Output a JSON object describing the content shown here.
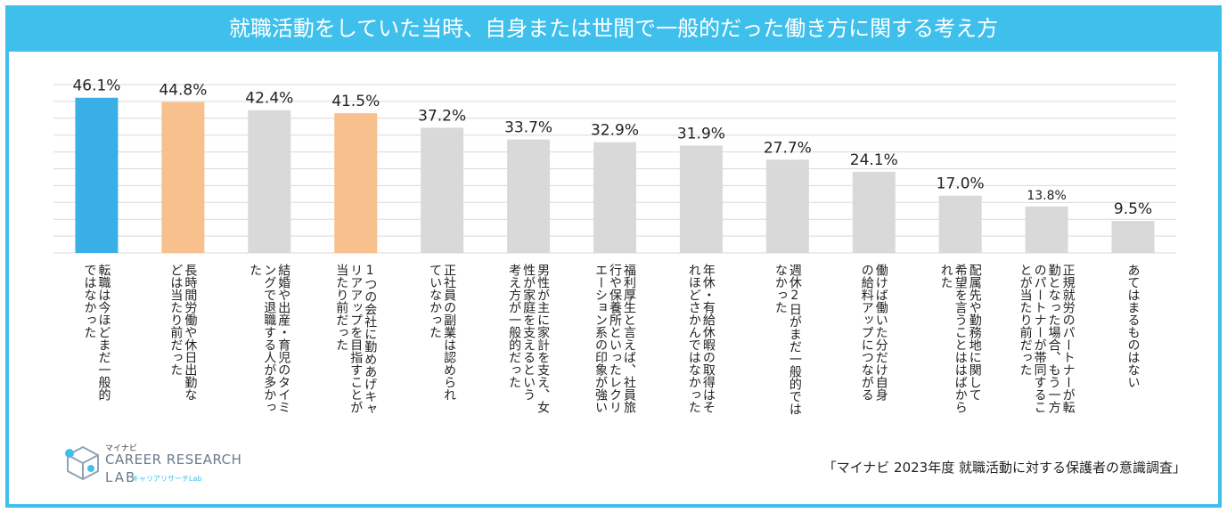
{
  "chart_data": {
    "type": "bar",
    "title": "就職活動をしていた当時、自身または世間で一般的だった働き方に関する考え方",
    "categories": [
      [
        "転職は今ほどまだ一般的",
        "ではなかった"
      ],
      [
        "長時間労働や休日出勤な",
        "どは当たり前だった"
      ],
      [
        "結婚や出産・育児のタイミ",
        "ングで退職する人が多かっ",
        "た"
      ],
      [
        "1つの会社に勤めあげキャ",
        "リアアップを目指すことが",
        "当たり前だった"
      ],
      [
        "正社員の副業は認められ",
        "ていなかった"
      ],
      [
        "男性が主に家計を支え、女",
        "性が家庭を支えるという",
        "考え方が一般的だった"
      ],
      [
        "福利厚生と言えば、社員旅",
        "行や保養所といったレクリ",
        "エーション系の印象が強い"
      ],
      [
        "年休・有給休暇の取得はそ",
        "れほどさかんではなかった"
      ],
      [
        "週休2日がまだ一般的では",
        "なかった"
      ],
      [
        "働けば働いた分だけ自身",
        "の給料アップにつながる"
      ],
      [
        "配属先や勤務地に関して",
        "希望を言うことははばから",
        "れた"
      ],
      [
        "正規就労のパートナーが転",
        "勤となった場合、もう一方",
        "のパートナーが帯同するこ",
        "とが当たり前だった"
      ],
      [
        "あてはまるものはない"
      ]
    ],
    "values": [
      46.1,
      44.8,
      42.4,
      41.5,
      37.2,
      33.7,
      32.9,
      31.9,
      27.7,
      24.1,
      17.0,
      13.8,
      9.5
    ],
    "value_labels": [
      "46.1%",
      "44.8%",
      "42.4%",
      "41.5%",
      "37.2%",
      "33.7%",
      "32.9%",
      "31.9%",
      "27.7%",
      "24.1%",
      "17.0%",
      "13.8%",
      "9.5%"
    ],
    "bar_colors": [
      "#3aaee6",
      "#f7c08d",
      "#d9d9d9",
      "#f7c08d",
      "#d9d9d9",
      "#d9d9d9",
      "#d9d9d9",
      "#d9d9d9",
      "#d9d9d9",
      "#d9d9d9",
      "#d9d9d9",
      "#d9d9d9",
      "#d9d9d9"
    ],
    "ylim": [
      0,
      50
    ],
    "grid": true,
    "grid_color": "#d9d9d9",
    "xlabel": "",
    "ylabel": ""
  },
  "source": "「マイナビ 2023年度 就職活動に対する保護者の意識調査」",
  "logo": {
    "small": "マイナビ",
    "main": "CAREER RESEARCH",
    "lab": "LAB",
    "sub": "キャリアリサーチLab"
  },
  "colors": {
    "frame": "#3fc0ec"
  }
}
